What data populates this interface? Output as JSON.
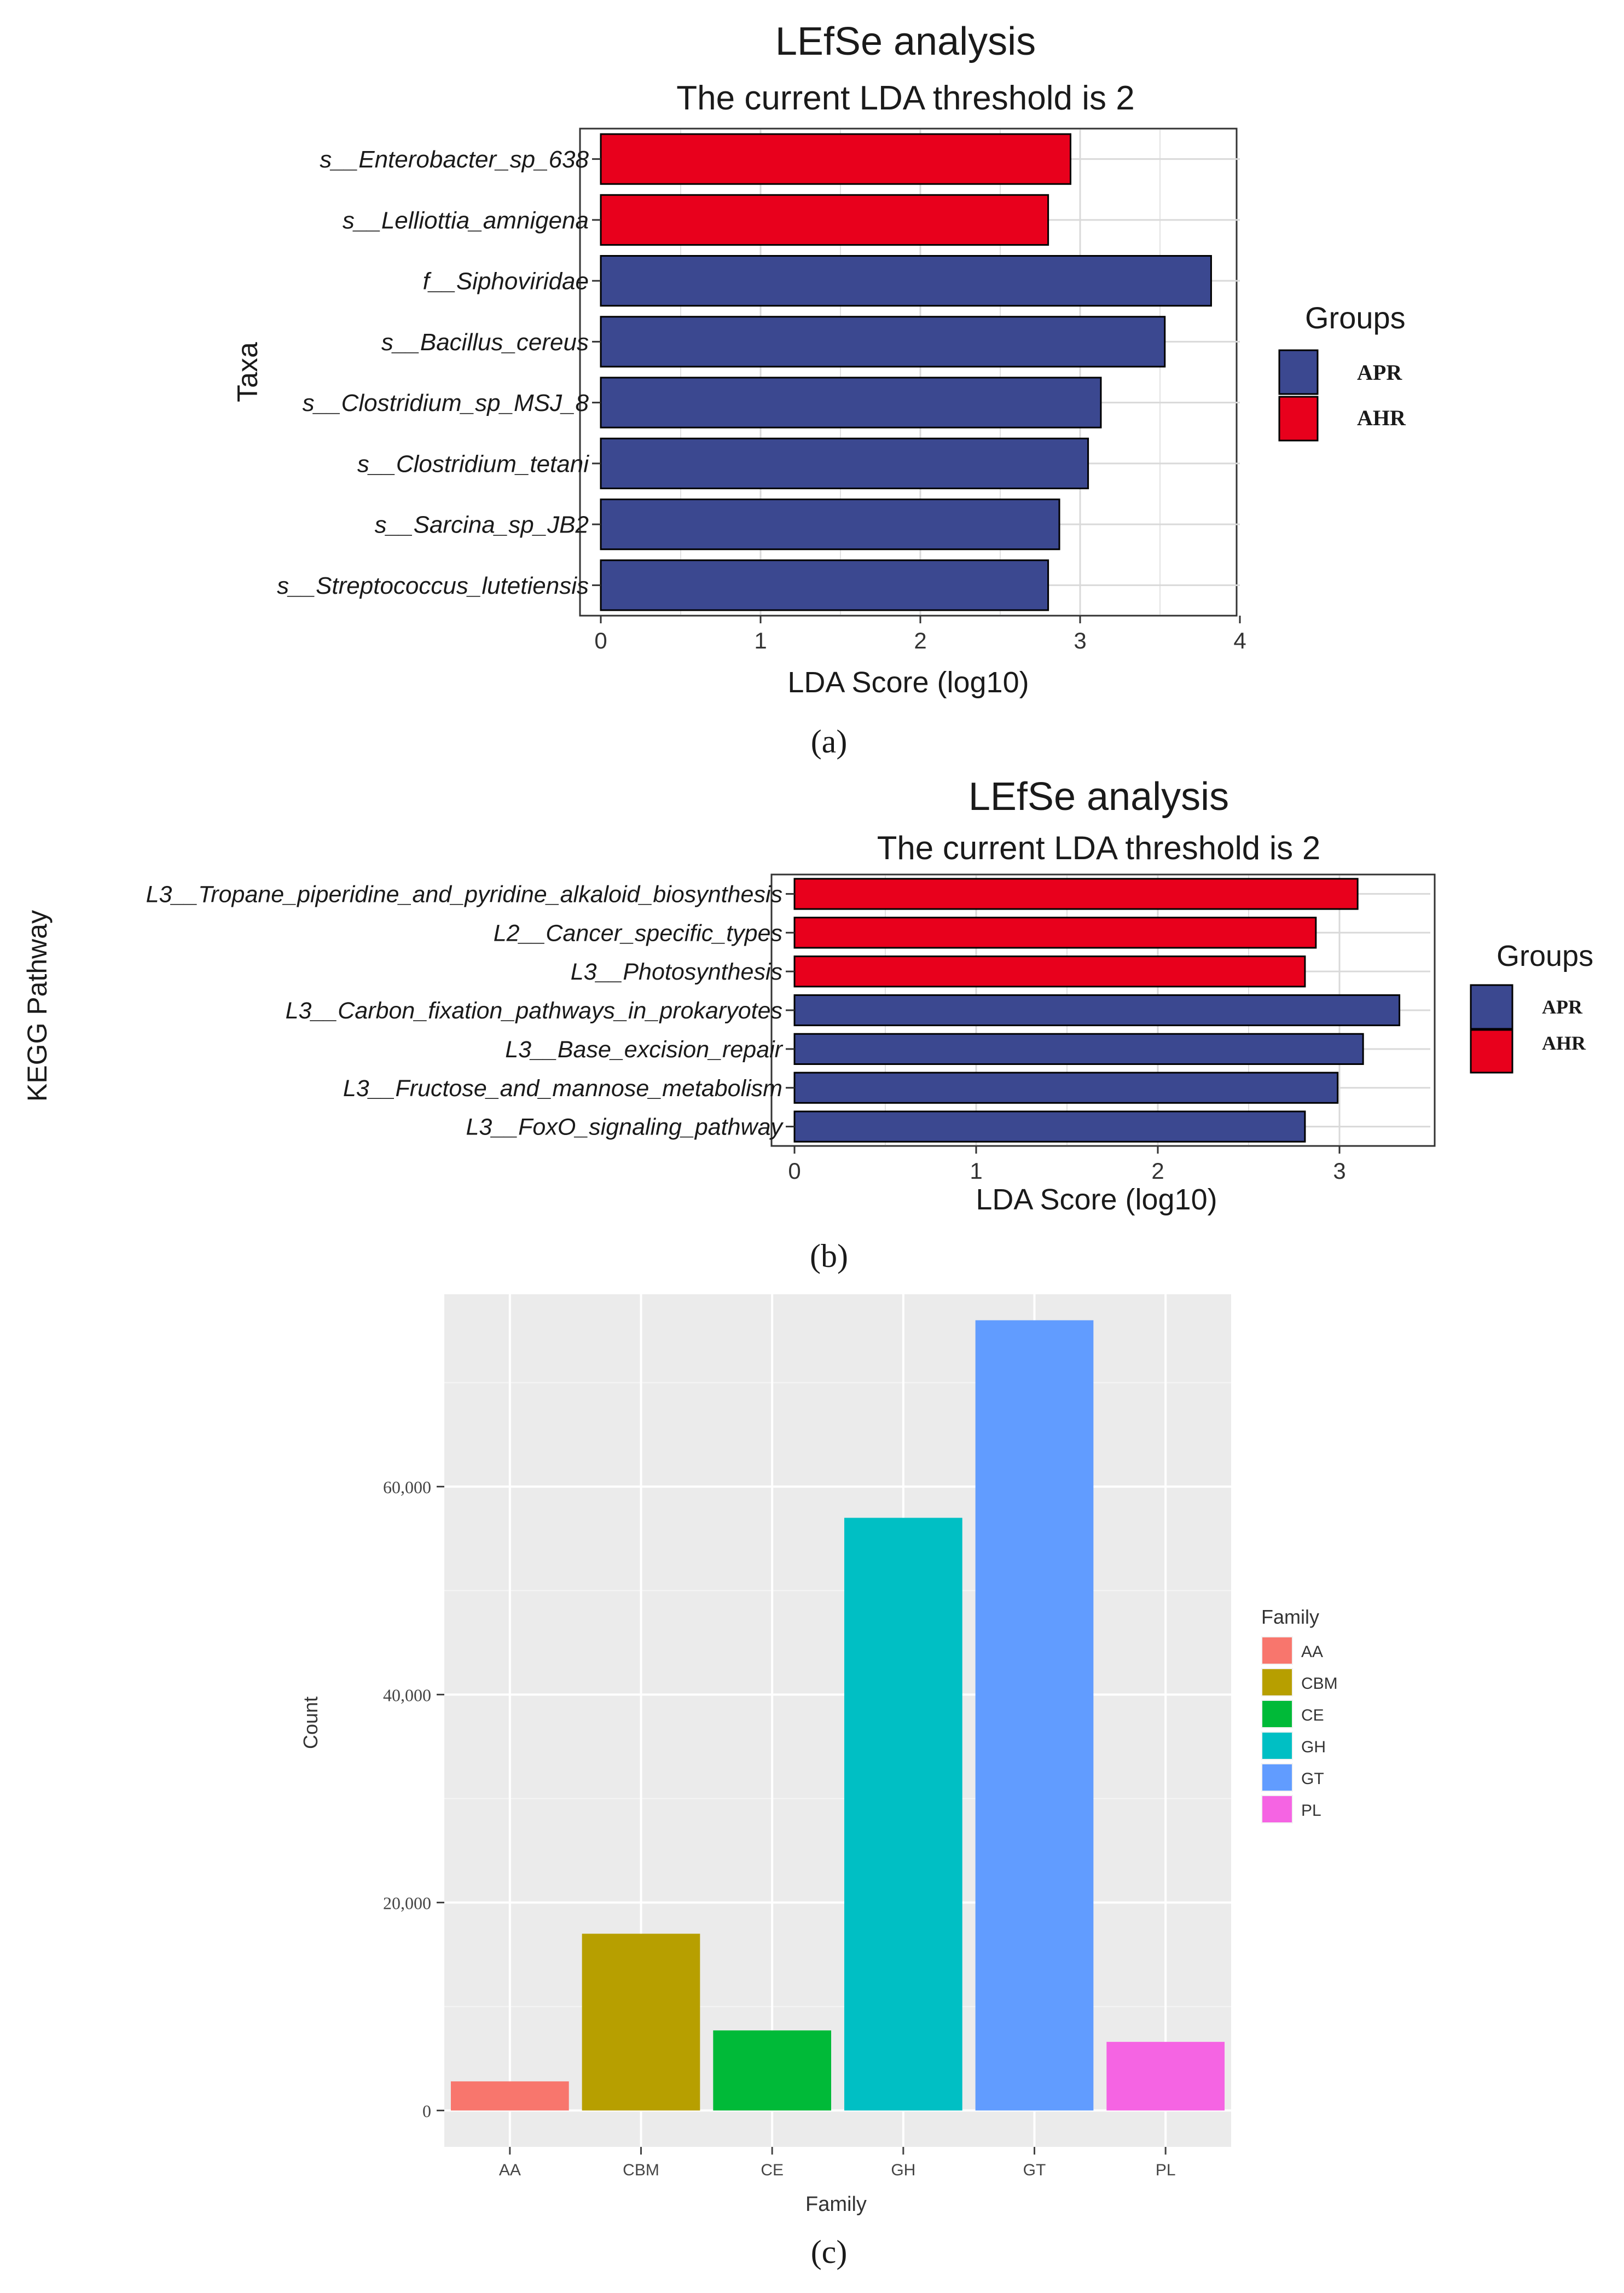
{
  "colors": {
    "APR": "#3B4890",
    "AHR": "#E8001C",
    "panel_c_bg": "#EBEBEB",
    "grid": "#D9D9D9"
  },
  "panel_labels": {
    "a": "(a)",
    "b": "(b)",
    "c": "(c)"
  },
  "chart_data": [
    {
      "id": "a",
      "type": "bar",
      "orientation": "horizontal",
      "title": "LEfSe analysis",
      "subtitle": "The current LDA threshold is 2",
      "xlabel": "LDA Score (log10)",
      "ylabel": "Taxa",
      "xlim": [
        0,
        4
      ],
      "xticks": [
        "0",
        "1",
        "2",
        "3",
        "4"
      ],
      "grid": true,
      "legend": {
        "title": "Groups",
        "position": "right",
        "entries": [
          {
            "name": "APR",
            "color": "#3B4890"
          },
          {
            "name": "AHR",
            "color": "#E8001C"
          }
        ]
      },
      "categories": [
        "s__Enterobacter_sp_638",
        "s__Lelliottia_amnigena",
        "f__Siphoviridae",
        "s__Bacillus_cereus",
        "s__Clostridium_sp_MSJ_8",
        "s__Clostridium_tetani",
        "s__Sarcina_sp_JB2",
        "s__Streptococcus_lutetiensis"
      ],
      "values": [
        2.94,
        2.8,
        3.82,
        3.53,
        3.13,
        3.05,
        2.87,
        2.8
      ],
      "groups": [
        "AHR",
        "AHR",
        "APR",
        "APR",
        "APR",
        "APR",
        "APR",
        "APR"
      ]
    },
    {
      "id": "b",
      "type": "bar",
      "orientation": "horizontal",
      "title": "LEfSe analysis",
      "subtitle": "The current LDA threshold is 2",
      "xlabel": "LDA Score (log10)",
      "ylabel": "KEGG Pathway",
      "xlim": [
        0,
        3.5
      ],
      "xticks": [
        "0",
        "1",
        "2",
        "3"
      ],
      "grid": true,
      "legend": {
        "title": "Groups",
        "position": "right",
        "entries": [
          {
            "name": "APR",
            "color": "#3B4890"
          },
          {
            "name": "AHR",
            "color": "#E8001C"
          }
        ]
      },
      "categories": [
        "L3__Tropane_piperidine_and_pyridine_alkaloid_biosynthesis",
        "L2__Cancer_specific_types",
        "L3__Photosynthesis",
        "L3__Carbon_fixation_pathways_in_prokaryotes",
        "L3__Base_excision_repair",
        "L3__Fructose_and_mannose_metabolism",
        "L3__FoxO_signaling_pathway"
      ],
      "values": [
        3.1,
        2.87,
        2.81,
        3.33,
        3.13,
        2.99,
        2.81
      ],
      "groups": [
        "AHR",
        "AHR",
        "AHR",
        "APR",
        "APR",
        "APR",
        "APR"
      ]
    },
    {
      "id": "c",
      "type": "bar",
      "orientation": "vertical",
      "xlabel": "Family",
      "ylabel": "Count",
      "ylim": [
        -3500,
        78500
      ],
      "yticks": [
        0,
        20000,
        40000,
        60000
      ],
      "ytick_labels": [
        "0",
        "20,000",
        "40,000",
        "60,000"
      ],
      "grid": true,
      "legend": {
        "title": "Family",
        "position": "right"
      },
      "categories": [
        "AA",
        "CBM",
        "CE",
        "GH",
        "GT",
        "PL"
      ],
      "values": [
        2800,
        17000,
        7700,
        57000,
        76000,
        6600
      ],
      "colors": [
        "#F8766D",
        "#B79F00",
        "#00BA38",
        "#00BFC4",
        "#619CFF",
        "#F564E3"
      ]
    }
  ]
}
